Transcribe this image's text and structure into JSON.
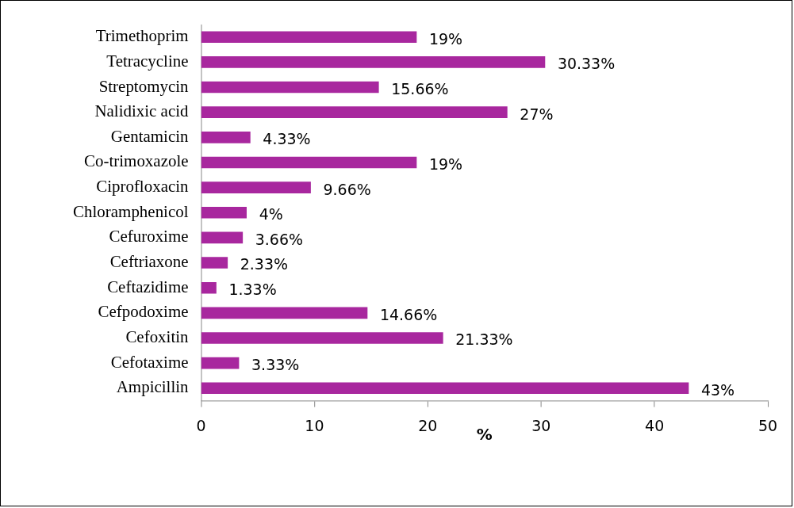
{
  "chart_data": {
    "type": "bar",
    "orientation": "horizontal",
    "xlabel": "%",
    "categories": [
      "Trimethoprim",
      "Tetracycline",
      "Streptomycin",
      "Nalidixic acid",
      "Gentamicin",
      "Co-trimoxazole",
      "Ciprofloxacin",
      "Chloramphenicol",
      "Cefuroxime",
      "Ceftriaxone",
      "Ceftazidime",
      "Cefpodoxime",
      "Cefoxitin",
      "Cefotaxime",
      "Ampicillin"
    ],
    "values": [
      19,
      30.33,
      15.66,
      27,
      4.33,
      19,
      9.66,
      4,
      3.66,
      2.33,
      1.33,
      14.66,
      21.33,
      3.33,
      43
    ],
    "value_labels": [
      "19%",
      "30.33%",
      "15.66%",
      "27%",
      "4.33%",
      "19%",
      "9.66%",
      "4%",
      "3.66%",
      "2.33%",
      "1.33%",
      "14.66%",
      "21.33%",
      "3.33%",
      "43%"
    ],
    "color": "#a8279e",
    "xlim": [
      0,
      50
    ],
    "xticks": [
      0,
      10,
      20,
      30,
      40,
      50
    ],
    "grid": false,
    "legend": false
  }
}
